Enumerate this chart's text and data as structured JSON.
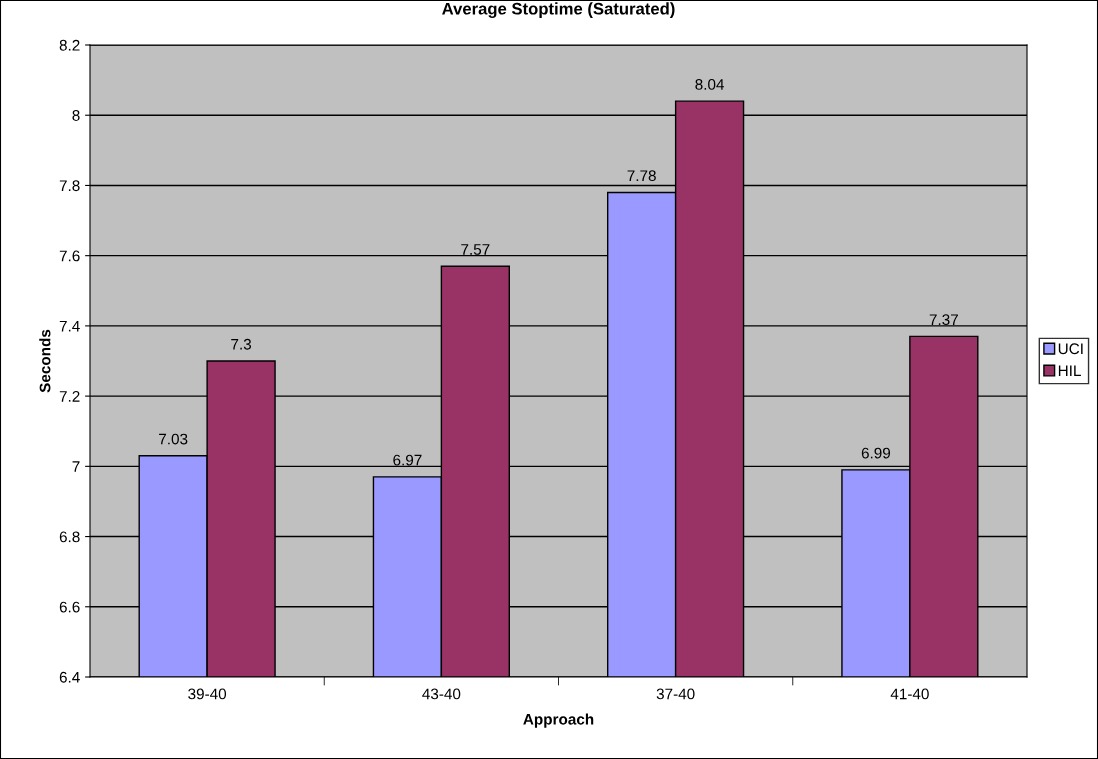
{
  "chart_data": {
    "type": "bar",
    "title": "Average Stoptime (Saturated)",
    "xlabel": "Approach",
    "ylabel": "Seconds",
    "categories": [
      "39-40",
      "43-40",
      "37-40",
      "41-40"
    ],
    "series": [
      {
        "name": "UCI",
        "color": "#9999ff",
        "values": [
          7.03,
          6.97,
          7.78,
          6.99
        ]
      },
      {
        "name": "HIL",
        "color": "#993366",
        "values": [
          7.3,
          7.57,
          8.04,
          7.37
        ]
      }
    ],
    "ylim": [
      6.4,
      8.2
    ],
    "yticks": [
      6.4,
      6.6,
      6.8,
      7,
      7.2,
      7.4,
      7.6,
      7.8,
      8,
      8.2
    ],
    "grid": "y",
    "legend": "right",
    "data_labels": true
  }
}
